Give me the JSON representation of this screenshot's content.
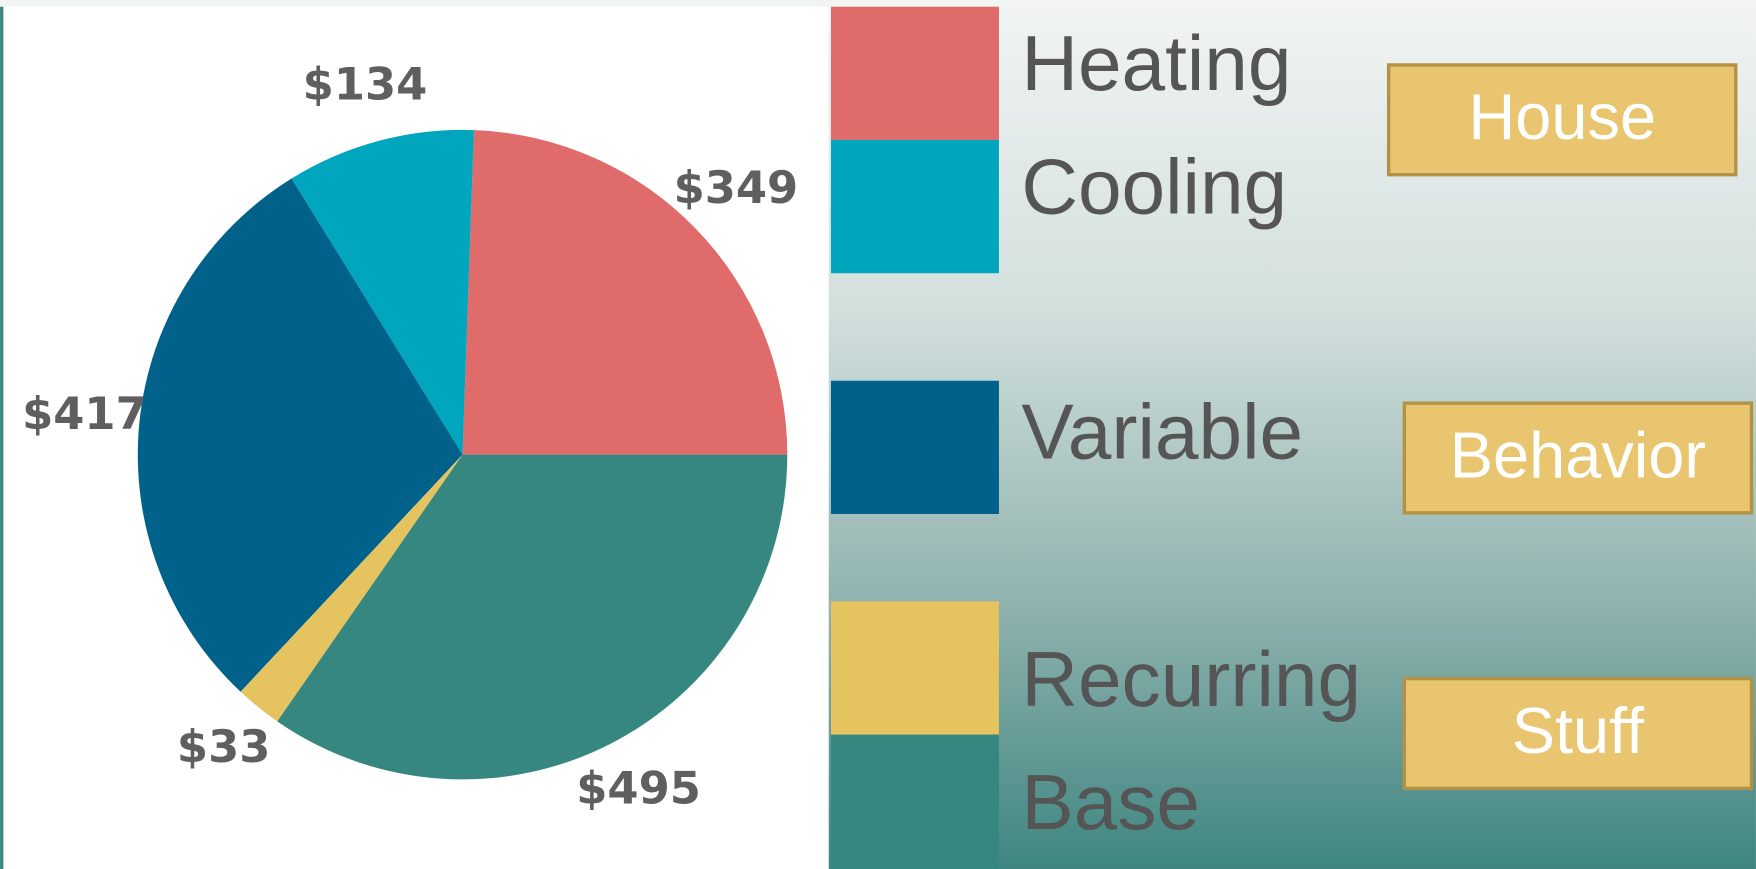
{
  "chart_data": {
    "type": "pie",
    "categories": [
      "Heating",
      "Cooling",
      "Variable",
      "Recurring",
      "Base"
    ],
    "values": [
      349,
      134,
      417,
      33,
      495
    ],
    "value_labels": [
      "$349",
      "$134",
      "$417",
      "$33",
      "$495"
    ],
    "colors": [
      "#e06b6b",
      "#00a6bd",
      "#00628b",
      "#e5c35f",
      "#358780"
    ],
    "annotations": [
      "House",
      "Behavior",
      "Stuff"
    ]
  }
}
